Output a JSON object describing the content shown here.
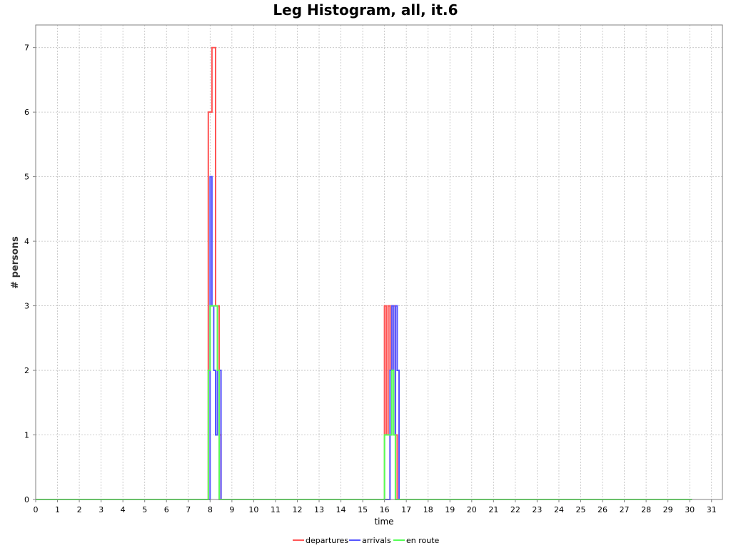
{
  "chart_data": {
    "type": "line",
    "title": "Leg Histogram, all, it.6",
    "xlabel": "time",
    "ylabel": "# persons",
    "xlim": [
      0,
      31.5
    ],
    "ylim": [
      0,
      7.35
    ],
    "x_ticks": [
      "0",
      "1",
      "2",
      "3",
      "4",
      "5",
      "6",
      "7",
      "8",
      "9",
      "10",
      "11",
      "12",
      "13",
      "14",
      "15",
      "16",
      "17",
      "18",
      "19",
      "20",
      "21",
      "22",
      "23",
      "24",
      "25",
      "26",
      "27",
      "28",
      "29",
      "30",
      "31"
    ],
    "y_ticks": [
      "0",
      "1",
      "2",
      "3",
      "4",
      "5",
      "6",
      "7"
    ],
    "grid": true,
    "legend_position": "bottom",
    "series": [
      {
        "name": "departures",
        "color": "#ff5555",
        "steps": [
          [
            0,
            0
          ],
          [
            7.917,
            0
          ],
          [
            7.917,
            6
          ],
          [
            8.083,
            6
          ],
          [
            8.083,
            7
          ],
          [
            8.25,
            7
          ],
          [
            8.25,
            3
          ],
          [
            8.417,
            3
          ],
          [
            8.417,
            0
          ],
          [
            8.417,
            1
          ],
          [
            8.5,
            1
          ],
          [
            8.5,
            0
          ],
          [
            16.0,
            0
          ],
          [
            16.0,
            3
          ],
          [
            16.083,
            3
          ],
          [
            16.083,
            1
          ],
          [
            16.167,
            1
          ],
          [
            16.167,
            3
          ],
          [
            16.25,
            3
          ],
          [
            16.25,
            2
          ],
          [
            16.333,
            2
          ],
          [
            16.333,
            3
          ],
          [
            16.5,
            3
          ],
          [
            16.5,
            1
          ],
          [
            16.583,
            1
          ],
          [
            16.583,
            0
          ],
          [
            30.1,
            0
          ]
        ]
      },
      {
        "name": "arrivals",
        "color": "#5555ff",
        "steps": [
          [
            0,
            0
          ],
          [
            8.0,
            0
          ],
          [
            8.0,
            5
          ],
          [
            8.083,
            5
          ],
          [
            8.083,
            3
          ],
          [
            8.167,
            3
          ],
          [
            8.167,
            2
          ],
          [
            8.25,
            2
          ],
          [
            8.25,
            1
          ],
          [
            8.333,
            1
          ],
          [
            8.333,
            2
          ],
          [
            8.5,
            2
          ],
          [
            8.5,
            0
          ],
          [
            16.25,
            0
          ],
          [
            16.25,
            2
          ],
          [
            16.333,
            2
          ],
          [
            16.333,
            3
          ],
          [
            16.417,
            3
          ],
          [
            16.417,
            1
          ],
          [
            16.5,
            1
          ],
          [
            16.5,
            3
          ],
          [
            16.583,
            3
          ],
          [
            16.583,
            2
          ],
          [
            16.667,
            2
          ],
          [
            16.667,
            0
          ],
          [
            30.1,
            0
          ]
        ]
      },
      {
        "name": "en route",
        "color": "#55ff55",
        "steps": [
          [
            0,
            0
          ],
          [
            7.917,
            0
          ],
          [
            7.917,
            2
          ],
          [
            8.0,
            2
          ],
          [
            8.0,
            3
          ],
          [
            8.167,
            3
          ],
          [
            8.167,
            3
          ],
          [
            8.333,
            3
          ],
          [
            8.333,
            2
          ],
          [
            8.417,
            2
          ],
          [
            8.417,
            0
          ],
          [
            16.0,
            0
          ],
          [
            16.0,
            1
          ],
          [
            16.167,
            1
          ],
          [
            16.167,
            1
          ],
          [
            16.333,
            1
          ],
          [
            16.333,
            2
          ],
          [
            16.417,
            2
          ],
          [
            16.417,
            1
          ],
          [
            16.5,
            1
          ],
          [
            16.5,
            0
          ],
          [
            30.1,
            0
          ]
        ]
      }
    ]
  }
}
